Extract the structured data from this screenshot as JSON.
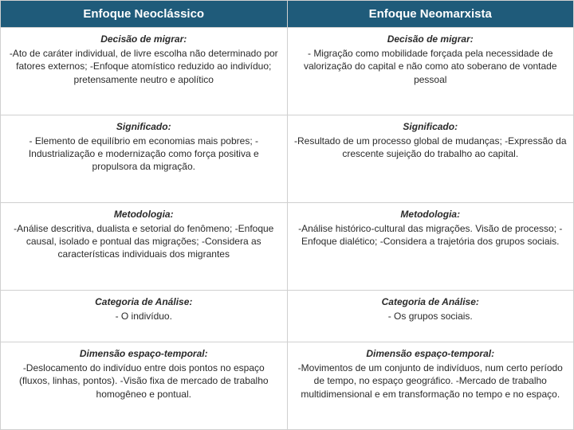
{
  "table": {
    "header_bg": "#1f5b7a",
    "header_fg": "#ffffff",
    "border_color": "#d0d0d0",
    "columns": [
      {
        "label": "Enfoque Neoclássico"
      },
      {
        "label": "Enfoque Neomarxista"
      }
    ],
    "rows": [
      {
        "title": "Decisão de migrar:",
        "left": "-Ato de caráter individual, de livre escolha não determinado por fatores externos;\n-Enfoque atomístico reduzido ao indivíduo; pretensamente neutro e apolítico",
        "right": "- Migração como mobilidade forçada pela necessidade de valorização do capital e não como ato soberano de vontade pessoal"
      },
      {
        "title": "Significado:",
        "left": "- Elemento de equilíbrio em economias mais pobres;\n- Industrialização e modernização como força positiva e propulsora da migração.",
        "right": "-Resultado de um processo global de mudanças;\n-Expressão da crescente sujeição do trabalho ao capital."
      },
      {
        "title": "Metodologia:",
        "left": "-Análise descritiva, dualista e setorial do fenômeno;\n-Enfoque causal, isolado e pontual das migrações;\n-Considera as características individuais dos migrantes",
        "right": "-Análise histórico-cultural das migrações. Visão de processo;\n-Enfoque dialético;\n-Considera a trajetória dos grupos sociais."
      },
      {
        "title": "Categoria de Análise:",
        "left": "- O indivíduo.",
        "right": "- Os grupos sociais."
      },
      {
        "title": "Dimensão espaço-temporal:",
        "left": "-Deslocamento do indivíduo entre dois pontos no espaço (fluxos, linhas, pontos).\n-Visão fixa de mercado de trabalho homogêneo e pontual.",
        "right": "-Movimentos de um conjunto de indivíduos, num certo período de tempo, no espaço geográfico.\n-Mercado de trabalho multidimensional e em transformação no tempo e no espaço."
      }
    ]
  }
}
